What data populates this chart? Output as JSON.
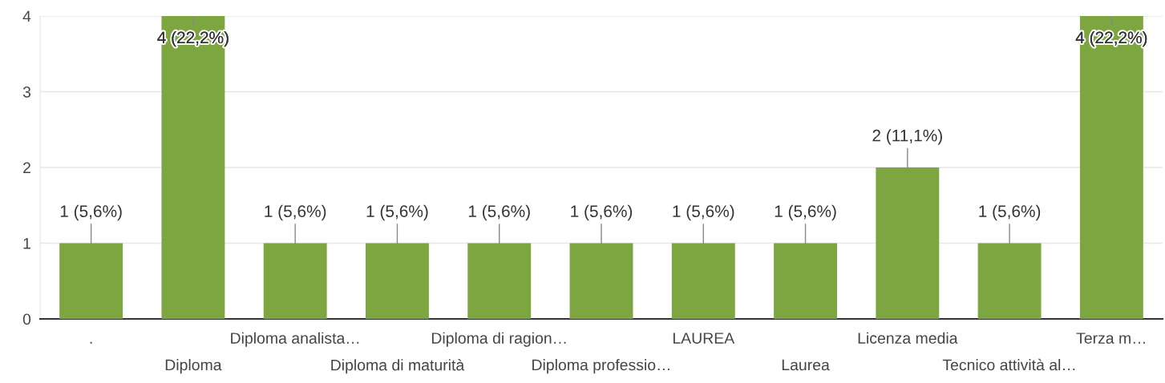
{
  "chart_data": {
    "type": "bar",
    "categories": [
      ".",
      "Diploma",
      "Diploma analista…",
      "Diploma di maturità",
      "Diploma di ragion…",
      "Diploma professio…",
      "LAUREA",
      "Laurea",
      "Licenza media",
      "Tecnico attività al…",
      "Terza m…"
    ],
    "values": [
      1,
      4,
      1,
      1,
      1,
      1,
      1,
      1,
      2,
      1,
      4
    ],
    "value_labels": [
      "1 (5,6%)",
      "4 (22,2%)",
      "1 (5,6%)",
      "1 (5,6%)",
      "1 (5,6%)",
      "1 (5,6%)",
      "1 (5,6%)",
      "1 (5,6%)",
      "2 (11,1%)",
      "1 (5,6%)",
      "4 (22,2%)"
    ],
    "color": "#7da640",
    "ylim": [
      0,
      4
    ],
    "yticks": [
      0,
      1,
      2,
      3,
      4
    ],
    "grid": "y"
  }
}
